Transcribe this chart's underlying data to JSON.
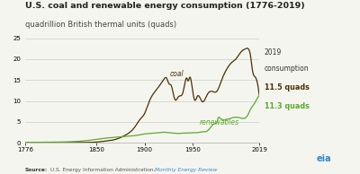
{
  "title": "U.S. coal and renewable energy consumption (1776-2019)",
  "subtitle": "quadrillion British thermal units (quads)",
  "coal_color": "#4a3000",
  "renewables_color": "#5aaa28",
  "background_color": "#f5f5f0",
  "grid_color": "#cccccc",
  "ylim": [
    0,
    25
  ],
  "yticks": [
    0,
    5,
    10,
    15,
    20,
    25
  ],
  "xlim": [
    1776,
    2019
  ],
  "xticks": [
    1776,
    1850,
    1900,
    1950,
    2019
  ],
  "title_fontsize": 6.8,
  "subtitle_fontsize": 6.0,
  "annotation_2019_label": "2019\nconsumption",
  "coal_2019_label": "11.5 quads",
  "renewables_2019_label": "11.3 quads",
  "coal_label": "coal",
  "renewables_label": "renewables",
  "source_bold": "Source:",
  "source_text": " U.S. Energy Information Administration, ",
  "source_link": "Monthly Energy Review",
  "coal_data": [
    [
      1776,
      0.0
    ],
    [
      1800,
      0.005
    ],
    [
      1820,
      0.01
    ],
    [
      1840,
      0.05
    ],
    [
      1850,
      0.15
    ],
    [
      1860,
      0.4
    ],
    [
      1870,
      0.8
    ],
    [
      1880,
      1.8
    ],
    [
      1890,
      3.8
    ],
    [
      1895,
      5.5
    ],
    [
      1900,
      7.0
    ],
    [
      1905,
      10.0
    ],
    [
      1910,
      12.0
    ],
    [
      1915,
      13.5
    ],
    [
      1920,
      15.2
    ],
    [
      1923,
      15.4
    ],
    [
      1925,
      14.2
    ],
    [
      1928,
      13.5
    ],
    [
      1930,
      11.5
    ],
    [
      1932,
      10.2
    ],
    [
      1935,
      11.0
    ],
    [
      1940,
      12.2
    ],
    [
      1944,
      15.4
    ],
    [
      1945,
      14.8
    ],
    [
      1947,
      15.7
    ],
    [
      1950,
      12.3
    ],
    [
      1952,
      10.2
    ],
    [
      1955,
      11.2
    ],
    [
      1960,
      9.8
    ],
    [
      1965,
      11.5
    ],
    [
      1970,
      12.3
    ],
    [
      1975,
      12.3
    ],
    [
      1980,
      15.0
    ],
    [
      1985,
      17.5
    ],
    [
      1990,
      19.1
    ],
    [
      1995,
      20.1
    ],
    [
      2000,
      21.7
    ],
    [
      2005,
      22.5
    ],
    [
      2008,
      22.4
    ],
    [
      2010,
      20.8
    ],
    [
      2012,
      17.3
    ],
    [
      2015,
      15.7
    ],
    [
      2018,
      13.2
    ],
    [
      2019,
      11.5
    ]
  ],
  "renewables_data": [
    [
      1776,
      0.05
    ],
    [
      1800,
      0.1
    ],
    [
      1820,
      0.2
    ],
    [
      1840,
      0.5
    ],
    [
      1850,
      0.8
    ],
    [
      1860,
      1.1
    ],
    [
      1870,
      1.3
    ],
    [
      1880,
      1.5
    ],
    [
      1890,
      1.7
    ],
    [
      1895,
      1.9
    ],
    [
      1900,
      2.1
    ],
    [
      1905,
      2.2
    ],
    [
      1910,
      2.3
    ],
    [
      1915,
      2.4
    ],
    [
      1920,
      2.5
    ],
    [
      1925,
      2.4
    ],
    [
      1930,
      2.3
    ],
    [
      1935,
      2.2
    ],
    [
      1940,
      2.3
    ],
    [
      1945,
      2.3
    ],
    [
      1950,
      2.4
    ],
    [
      1955,
      2.4
    ],
    [
      1960,
      2.6
    ],
    [
      1965,
      2.8
    ],
    [
      1970,
      4.1
    ],
    [
      1973,
      4.6
    ],
    [
      1975,
      4.9
    ],
    [
      1977,
      6.1
    ],
    [
      1978,
      5.9
    ],
    [
      1980,
      5.6
    ],
    [
      1983,
      5.4
    ],
    [
      1985,
      5.5
    ],
    [
      1990,
      5.9
    ],
    [
      1995,
      6.1
    ],
    [
      2000,
      5.9
    ],
    [
      2005,
      6.0
    ],
    [
      2008,
      7.0
    ],
    [
      2010,
      8.0
    ],
    [
      2013,
      9.0
    ],
    [
      2016,
      10.2
    ],
    [
      2018,
      11.0
    ],
    [
      2019,
      11.3
    ]
  ]
}
